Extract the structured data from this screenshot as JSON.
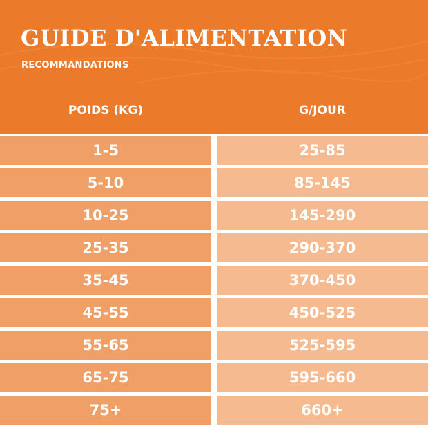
{
  "header": {
    "title": "GUIDE D'ALIMENTATION",
    "subtitle": "RECOMMANDATIONS"
  },
  "table": {
    "columns": [
      "POIDS (KG)",
      "G/JOUR"
    ],
    "rows": [
      [
        "1-5",
        "25-85"
      ],
      [
        "5-10",
        "85-145"
      ],
      [
        "10-25",
        "145-290"
      ],
      [
        "25-35",
        "290-370"
      ],
      [
        "35-45",
        "370-450"
      ],
      [
        "45-55",
        "450-525"
      ],
      [
        "55-65",
        "525-595"
      ],
      [
        "65-75",
        "595-660"
      ],
      [
        "75+",
        "660+"
      ]
    ]
  }
}
